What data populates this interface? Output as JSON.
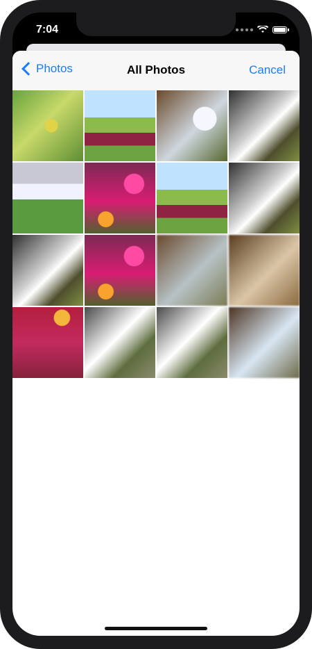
{
  "status_bar": {
    "time": "7:04"
  },
  "nav_bar": {
    "back_label": "Photos",
    "title": "All Photos",
    "cancel_label": "Cancel"
  },
  "photos": [
    "leaves",
    "meadow",
    "waterfall",
    "torrent",
    "cliff",
    "flowers",
    "meadow",
    "torrent",
    "torrent",
    "flowers",
    "blur-warm",
    "sepia",
    "red-flowers",
    "waterfall-2",
    "waterfall-2",
    "blur-cool"
  ],
  "colors": {
    "accent": "#1a7cf6",
    "nav_background": "#f7f7f7",
    "device_frame": "#1c1c1e"
  }
}
